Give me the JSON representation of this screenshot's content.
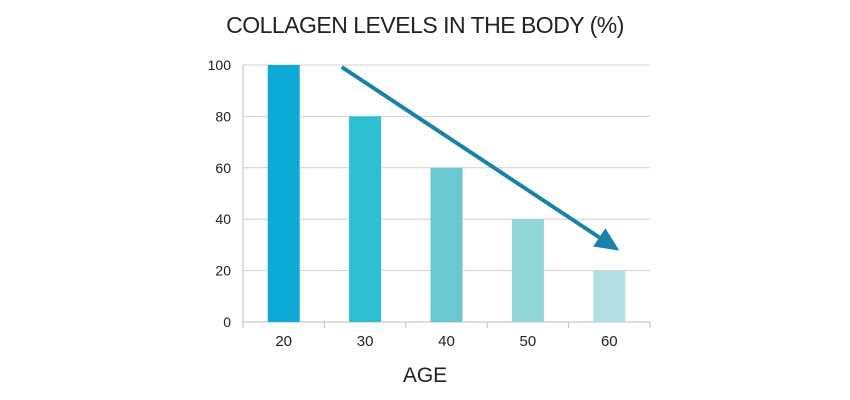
{
  "chart_data": {
    "type": "bar",
    "title": "COLLAGEN LEVELS IN THE BODY (%)",
    "xlabel": "AGE",
    "ylabel": "",
    "categories": [
      "20",
      "30",
      "40",
      "50",
      "60"
    ],
    "values": [
      100,
      80,
      60,
      40,
      20
    ],
    "ylim": [
      0,
      100
    ],
    "yticks": [
      "0",
      "20",
      "40",
      "60",
      "80",
      "100"
    ],
    "grid": true,
    "bar_colors": [
      "#0eaad6",
      "#2bbfd0",
      "#6ac8d3",
      "#92d6da",
      "#afdfe3"
    ],
    "trend_arrow": {
      "from": "20",
      "to": "60",
      "color": "#1a82a8"
    }
  }
}
